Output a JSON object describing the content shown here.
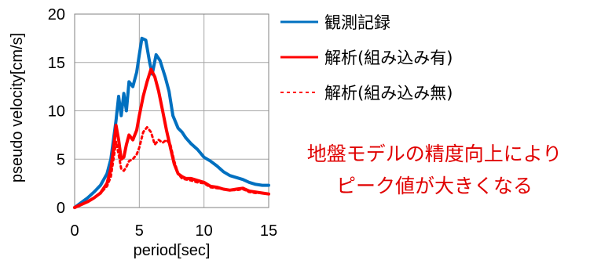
{
  "chart_data": {
    "type": "line",
    "xlabel": "period[sec]",
    "ylabel": "pseudo velocity[cm/s]",
    "xlim": [
      0,
      15
    ],
    "ylim": [
      0,
      20
    ],
    "xticks": [
      0,
      5,
      10,
      15
    ],
    "yticks": [
      0,
      5,
      10,
      15,
      20
    ],
    "grid": true,
    "legend_position": "right",
    "series": [
      {
        "name": "観測記録",
        "color": "#0070C0",
        "style": "solid",
        "x": [
          0,
          0.5,
          1,
          1.5,
          2,
          2.5,
          2.8,
          3.0,
          3.2,
          3.4,
          3.6,
          3.8,
          4.0,
          4.2,
          4.5,
          4.8,
          5.0,
          5.2,
          5.5,
          5.8,
          6.0,
          6.3,
          6.6,
          7.0,
          7.3,
          7.6,
          8.0,
          8.3,
          8.6,
          9.0,
          9.5,
          10,
          10.5,
          11,
          11.5,
          12,
          12.5,
          13,
          13.5,
          14,
          14.5,
          15
        ],
        "y": [
          0,
          0.5,
          1.0,
          1.6,
          2.3,
          3.5,
          5.0,
          7.0,
          9.0,
          11.5,
          9.5,
          11.8,
          10.0,
          13.0,
          12.5,
          14.0,
          15.8,
          17.5,
          17.3,
          15.0,
          13.8,
          15.8,
          15.2,
          13.5,
          12.0,
          9.5,
          8.2,
          7.8,
          7.2,
          6.6,
          6.0,
          5.2,
          4.8,
          4.3,
          3.7,
          3.3,
          3.1,
          2.9,
          2.6,
          2.4,
          2.3,
          2.3
        ]
      },
      {
        "name": "解析(組み込み有)",
        "color": "#FF0000",
        "style": "solid",
        "x": [
          0,
          0.5,
          1,
          1.5,
          2,
          2.5,
          2.8,
          3.0,
          3.2,
          3.4,
          3.6,
          3.8,
          4.0,
          4.2,
          4.5,
          4.8,
          5.0,
          5.3,
          5.6,
          5.9,
          6.2,
          6.5,
          6.8,
          7.1,
          7.4,
          7.7,
          8.0,
          8.3,
          8.6,
          9.0,
          9.5,
          10,
          10.5,
          11,
          11.5,
          12,
          12.5,
          13,
          13.5,
          14,
          14.5,
          15
        ],
        "y": [
          0,
          0.3,
          0.6,
          1.0,
          1.5,
          2.5,
          4.0,
          6.0,
          8.5,
          7.0,
          5.0,
          5.2,
          6.5,
          7.5,
          7.0,
          8.0,
          9.5,
          11.5,
          13.0,
          14.3,
          13.5,
          12.0,
          10.0,
          8.0,
          6.2,
          4.5,
          3.5,
          3.2,
          3.0,
          3.0,
          2.8,
          2.6,
          2.2,
          2.1,
          1.9,
          1.8,
          1.9,
          2.0,
          1.7,
          1.6,
          1.5,
          1.4
        ]
      },
      {
        "name": "解析(組み込み無)",
        "color": "#FF0000",
        "style": "dotted",
        "x": [
          0,
          0.5,
          1,
          1.5,
          2,
          2.5,
          2.8,
          3.0,
          3.2,
          3.4,
          3.6,
          3.8,
          4.0,
          4.2,
          4.5,
          4.8,
          5.0,
          5.3,
          5.6,
          5.9,
          6.2,
          6.5,
          6.8,
          7.1,
          7.4,
          7.7,
          8.0,
          8.3,
          8.6,
          9.0,
          9.5,
          10,
          10.5,
          11,
          11.5,
          12,
          12.5,
          13,
          13.5,
          14,
          14.5,
          15
        ],
        "y": [
          0,
          0.3,
          0.6,
          1.0,
          1.5,
          2.2,
          3.2,
          5.0,
          6.8,
          5.5,
          4.0,
          3.8,
          4.2,
          4.8,
          5.0,
          5.5,
          6.2,
          7.8,
          8.3,
          7.8,
          6.5,
          7.0,
          6.7,
          7.0,
          6.5,
          4.8,
          3.5,
          3.0,
          2.9,
          2.8,
          2.6,
          2.5,
          2.1,
          2.0,
          1.9,
          1.8,
          1.8,
          1.9,
          1.6,
          1.5,
          1.5,
          1.4
        ]
      }
    ],
    "annotation": [
      "地盤モデルの精度向上により",
      "ピーク値が大きくなる"
    ]
  }
}
